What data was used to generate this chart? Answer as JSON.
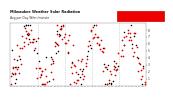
{
  "title": "Milwaukee Weather Solar Radiation",
  "subtitle": "Avg per Day W/m²/minute",
  "bg_color": "#ffffff",
  "plot_bg": "#ffffff",
  "grid_color": "#bbbbbb",
  "y_min": 0,
  "y_max": 9,
  "y_ticks": [
    1,
    2,
    3,
    4,
    5,
    6,
    7,
    8
  ],
  "red_color": "#dd0000",
  "black_color": "#000000",
  "legend_color": "#ee0000",
  "n_points": 200,
  "seed": 17,
  "amplitude": 3.2,
  "baseline": 4.2,
  "noise_red": 1.2,
  "noise_black": 1.5,
  "vline_positions": [
    40,
    80,
    120,
    160
  ],
  "dot_size_red": 1.5,
  "dot_size_black": 1.2
}
